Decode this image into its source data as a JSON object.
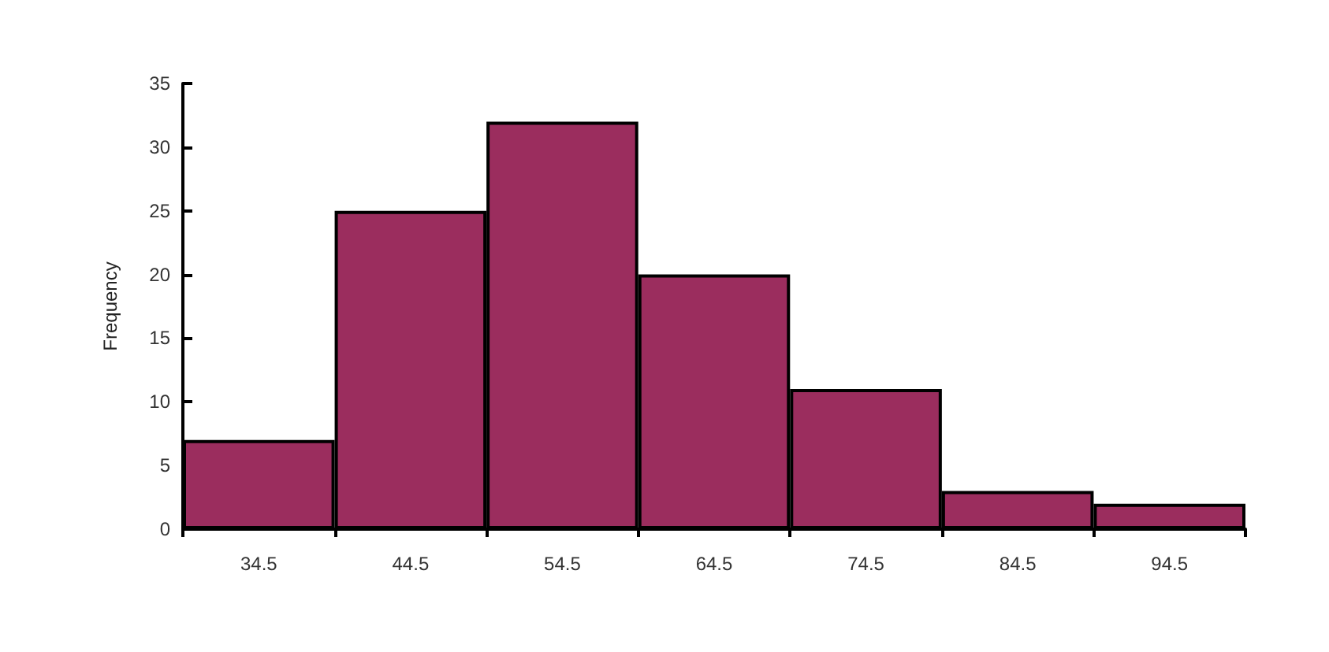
{
  "chart_data": {
    "type": "bar",
    "ylabel": "Frequency",
    "categories": [
      "34.5",
      "44.5",
      "54.5",
      "64.5",
      "74.5",
      "84.5",
      "94.5"
    ],
    "values": [
      7,
      25,
      32,
      20,
      11,
      3,
      2
    ],
    "color": "#9b2d5e",
    "ylim": [
      0,
      35
    ],
    "yticks": [
      0,
      5,
      10,
      15,
      20,
      25,
      30,
      35
    ],
    "grid": false
  }
}
